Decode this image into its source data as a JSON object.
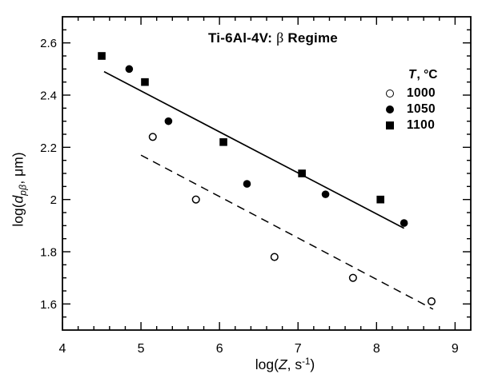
{
  "figure": {
    "background": "#ffffff",
    "foreground": "#000000"
  },
  "chart_data": {
    "type": "scatter",
    "title": "Ti-6Al-4V: β Regime",
    "title_parts": {
      "pre": "Ti-6Al-4V: ",
      "beta": "β",
      "post": " Regime"
    },
    "xlabel": "log(Z, s-1)",
    "xlabel_parts": {
      "pre": "log(",
      "var": "Z",
      "mid": ", s",
      "sup": "-1",
      "close": ")"
    },
    "ylabel": "log(dpβ, μm)",
    "ylabel_parts": {
      "pre": "log(",
      "var": "d",
      "sub": "pβ",
      "post": ", μm)"
    },
    "xlim": [
      4,
      9.2
    ],
    "ylim": [
      1.5,
      2.7
    ],
    "x_major_ticks": {
      "values": [
        4,
        5,
        6,
        7,
        8,
        9
      ],
      "labels": [
        "4",
        "5",
        "6",
        "7",
        "8",
        "9"
      ]
    },
    "y_major_ticks": {
      "values": [
        1.6,
        1.8,
        2.0,
        2.2,
        2.4,
        2.6
      ],
      "labels": [
        "1.6",
        "1.8",
        "2",
        "2.2",
        "2.4",
        "2.6"
      ]
    },
    "x_minor_step": 0.2,
    "y_minor_step": 0.05,
    "grid": false,
    "legend": {
      "position": "upper-right",
      "header": "T, °C",
      "header_parts": {
        "var": "T",
        "rest": ", °C"
      }
    },
    "series": [
      {
        "name": "1000",
        "temperature_c": 1000,
        "marker": "open-circle",
        "points": [
          [
            5.15,
            2.24
          ],
          [
            5.7,
            2.0
          ],
          [
            6.7,
            1.78
          ],
          [
            7.7,
            1.7
          ],
          [
            8.7,
            1.61
          ]
        ]
      },
      {
        "name": "1050",
        "temperature_c": 1050,
        "marker": "filled-circle",
        "points": [
          [
            4.85,
            2.5
          ],
          [
            5.35,
            2.3
          ],
          [
            6.35,
            2.06
          ],
          [
            7.35,
            2.02
          ],
          [
            8.35,
            1.91
          ]
        ]
      },
      {
        "name": "1100",
        "temperature_c": 1100,
        "marker": "filled-square",
        "points": [
          [
            4.5,
            2.55
          ],
          [
            5.05,
            2.45
          ],
          [
            6.05,
            2.22
          ],
          [
            7.05,
            2.1
          ],
          [
            8.05,
            2.0
          ]
        ]
      }
    ],
    "fit_lines": [
      {
        "name": "solid-fit-line",
        "style": "solid",
        "from": [
          4.53,
          2.49
        ],
        "to": [
          8.35,
          1.89
        ]
      },
      {
        "name": "dashed-fit-line",
        "style": "dashed",
        "from": [
          5.0,
          2.17
        ],
        "to": [
          8.72,
          1.58
        ]
      }
    ]
  }
}
